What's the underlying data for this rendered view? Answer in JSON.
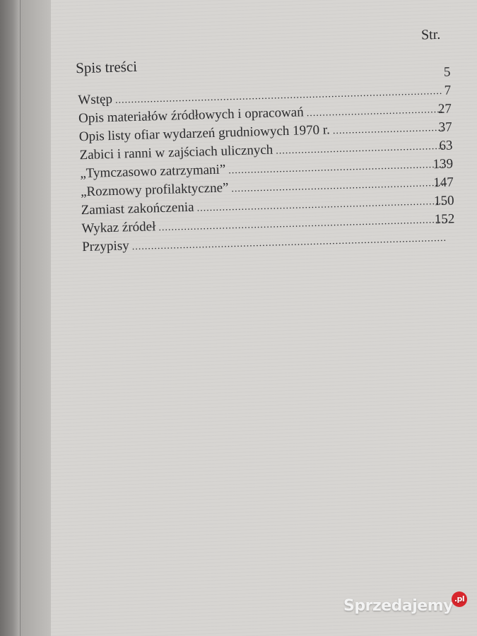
{
  "page_header": {
    "str_label": "Str.",
    "title": "Spis treści"
  },
  "toc": {
    "pages": [
      "5",
      "7",
      "27",
      "37",
      "63",
      "139",
      "147",
      "150",
      "152"
    ],
    "entries": [
      {
        "title": "Wstęp"
      },
      {
        "title": "Opis materiałów źródłowych i opracowań"
      },
      {
        "title": "Opis listy ofiar wydarzeń grudniowych 1970 r."
      },
      {
        "title": "Zabici i ranni w zajściach ulicznych"
      },
      {
        "title": "„Tymczasowo zatrzymani”"
      },
      {
        "title": "„Rozmowy profilaktyczne”"
      },
      {
        "title": "Zamiast zakończenia"
      },
      {
        "title": "Wykaz źródeł"
      },
      {
        "title": "Przypisy"
      }
    ]
  },
  "watermark": {
    "text": "Sprzedajemy",
    "suffix": ".pl"
  }
}
